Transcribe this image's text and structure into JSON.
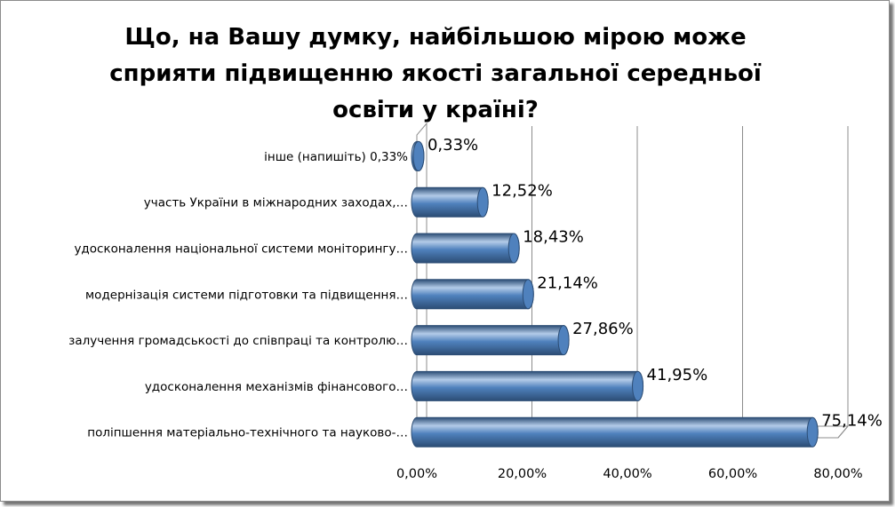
{
  "chart_data": {
    "type": "bar",
    "orientation": "horizontal",
    "style": "3d-cylinder",
    "title": "Що, на Вашу думку, найбільшою мірою може сприяти підвищенню якості загальної середньої освіти у країні?",
    "title_lines": [
      "Що, на Вашу думку, найбільшою  мірою може",
      "сприяти підвищенню якості загальної середньої",
      "освіти у країні?"
    ],
    "categories": [
      "поліпшення матеріально-технічного та науково-…",
      "удосконалення механізмів фінансового…",
      "залучення громадськості до співпраці та контролю…",
      "модернізація системи підготовки та підвищення…",
      "удосконалення національної системи моніторингу…",
      "участь України в міжнародних заходах,…",
      "інше (напишіть) 0,33%"
    ],
    "values": [
      75.14,
      41.95,
      27.86,
      21.14,
      18.43,
      12.52,
      0.33
    ],
    "data_labels": [
      "75,14%",
      "41,95%",
      "27,86%",
      "21,14%",
      "18,43%",
      "12,52%",
      "0,33%"
    ],
    "x_ticks": [
      0,
      20,
      40,
      60,
      80
    ],
    "x_tick_labels": [
      "0,00%",
      "20,00%",
      "40,00%",
      "60,00%",
      "80,00%"
    ],
    "xlim": [
      0,
      80
    ],
    "xlabel": "",
    "ylabel": "",
    "grid": "vertical",
    "legend": "none",
    "colors": {
      "bar_fill": "#4f81bd",
      "bar_light": "#b3cbe8",
      "bar_dark": "#2c4d75",
      "grid": "#8c8c8c"
    }
  }
}
